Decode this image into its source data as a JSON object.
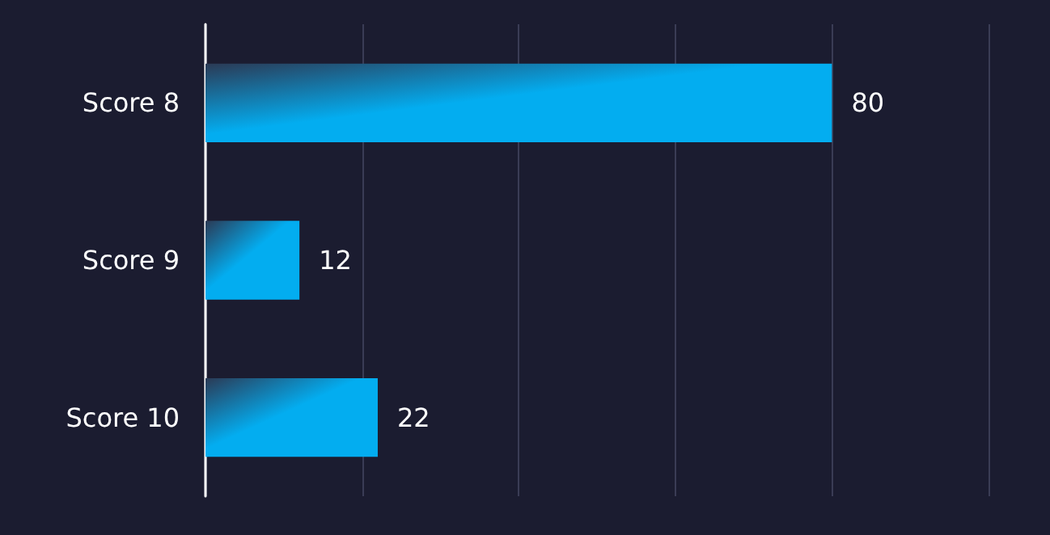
{
  "chart_data": {
    "type": "bar",
    "orientation": "horizontal",
    "categories": [
      "Score 8",
      "Score 9",
      "Score 10"
    ],
    "values": [
      80,
      12,
      22
    ],
    "color": "#03adf0",
    "data_labels": true,
    "xlim": [
      0,
      100
    ],
    "xticks": [
      {
        "value": 0,
        "label": null
      },
      {
        "value": 20,
        "label": null
      },
      {
        "value": 40,
        "label": null
      },
      {
        "value": 60,
        "label": null
      },
      {
        "value": 80,
        "label": null
      },
      {
        "value": 100,
        "label": null
      }
    ],
    "tick_labels": "y",
    "grid": "x"
  }
}
